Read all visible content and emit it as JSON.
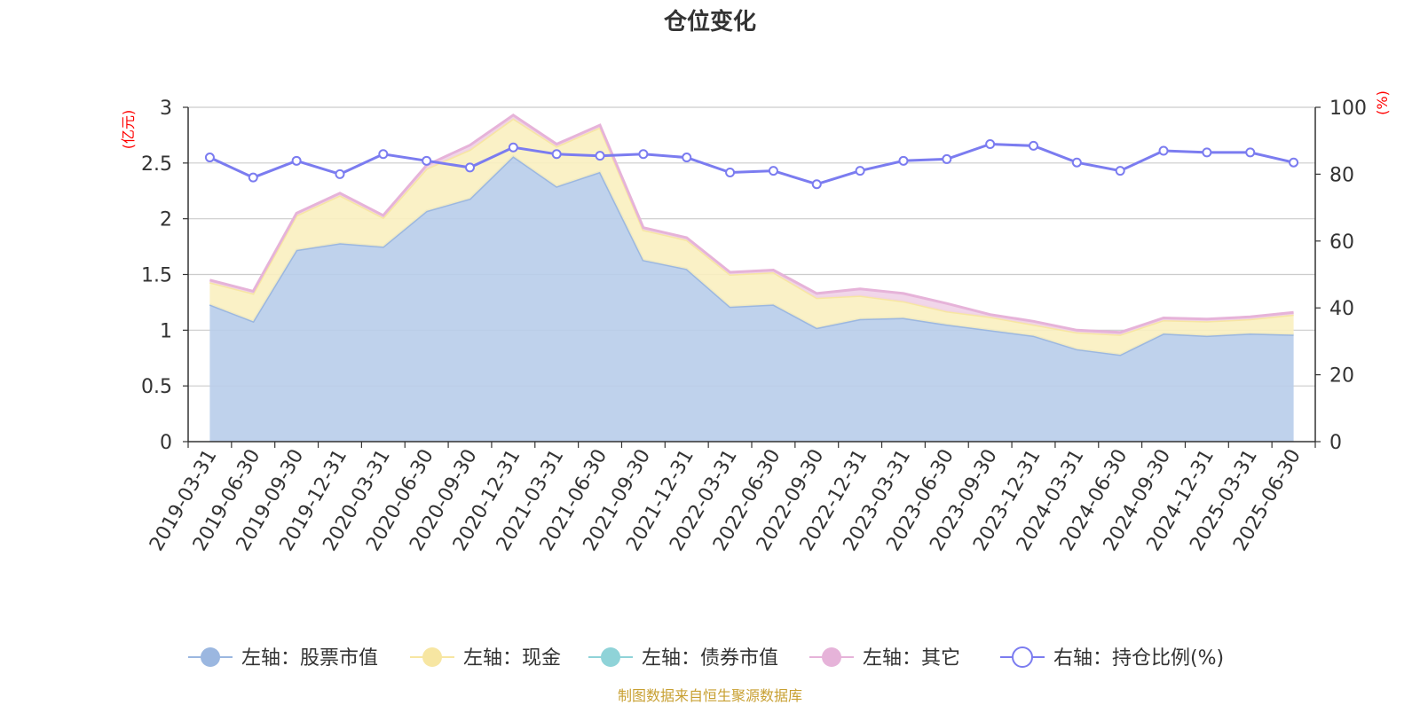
{
  "title": "仓位变化",
  "footer": "制图数据来自恒生聚源数据库",
  "left_axis_unit": "(亿元)",
  "right_axis_unit": "(%)",
  "colors": {
    "stock": "#9bb7e0",
    "stock_fill": "#b8cdea",
    "cash": "#f7e6a2",
    "cash_fill": "#faefc0",
    "bond": "#8fd3d8",
    "other": "#e6b3d9",
    "other_fill": "#efd1e8",
    "ratio": "#7b7cf0",
    "axis_unit": "#ff0000",
    "footer": "#c8a032",
    "text": "#333333",
    "grid": "#cccccc"
  },
  "chart_data": {
    "type": "area",
    "title": "仓位变化",
    "categories": [
      "2019-03-31",
      "2019-06-30",
      "2019-09-30",
      "2019-12-31",
      "2020-03-31",
      "2020-06-30",
      "2020-09-30",
      "2020-12-31",
      "2021-03-31",
      "2021-06-30",
      "2021-09-30",
      "2021-12-31",
      "2022-03-31",
      "2022-06-30",
      "2022-09-30",
      "2022-12-31",
      "2023-03-31",
      "2023-06-30",
      "2023-09-30",
      "2023-12-31",
      "2024-03-31",
      "2024-06-30",
      "2024-09-30",
      "2024-12-31",
      "2025-03-31",
      "2025-06-30"
    ],
    "left_axis": {
      "ylim": [
        0,
        3
      ],
      "ticks": [
        "0",
        "0.5",
        "1",
        "1.5",
        "2",
        "2.5",
        "3"
      ],
      "tick_values": [
        0,
        0.5,
        1,
        1.5,
        2,
        2.5,
        3
      ]
    },
    "right_axis": {
      "ylim": [
        0,
        100
      ],
      "ticks": [
        "0",
        "20",
        "40",
        "60",
        "80",
        "100"
      ],
      "tick_values": [
        0,
        20,
        40,
        60,
        80,
        100
      ]
    },
    "series": [
      {
        "name": "左轴：股票市值",
        "axis": "left",
        "stack": true,
        "values": [
          1.23,
          1.08,
          1.72,
          1.78,
          1.75,
          2.07,
          2.18,
          2.56,
          2.29,
          2.42,
          1.63,
          1.55,
          1.21,
          1.23,
          1.02,
          1.1,
          1.11,
          1.05,
          1.0,
          0.95,
          0.83,
          0.78,
          0.97,
          0.95,
          0.97,
          0.96
        ]
      },
      {
        "name": "左轴：现金",
        "axis": "left",
        "stack": true,
        "values": [
          0.2,
          0.25,
          0.31,
          0.43,
          0.26,
          0.38,
          0.44,
          0.34,
          0.36,
          0.4,
          0.27,
          0.26,
          0.29,
          0.29,
          0.27,
          0.21,
          0.15,
          0.12,
          0.12,
          0.1,
          0.15,
          0.18,
          0.12,
          0.13,
          0.13,
          0.18
        ]
      },
      {
        "name": "左轴：债券市值",
        "axis": "left",
        "stack": true,
        "values": [
          0,
          0,
          0,
          0,
          0,
          0,
          0,
          0,
          0,
          0,
          0,
          0,
          0,
          0,
          0,
          0,
          0,
          0,
          0,
          0,
          0,
          0,
          0,
          0,
          0,
          0
        ]
      },
      {
        "name": "左轴：其它",
        "axis": "left",
        "stack": true,
        "values": [
          0.02,
          0.02,
          0.02,
          0.02,
          0.02,
          0.03,
          0.04,
          0.03,
          0.02,
          0.02,
          0.02,
          0.02,
          0.02,
          0.02,
          0.04,
          0.06,
          0.07,
          0.07,
          0.02,
          0.03,
          0.02,
          0.02,
          0.02,
          0.02,
          0.02,
          0.02
        ]
      },
      {
        "name": "右轴：持仓比例(%)",
        "axis": "right",
        "type": "line",
        "values": [
          85,
          79,
          84,
          80,
          86,
          84,
          82,
          88,
          86,
          85.5,
          86,
          85,
          80.5,
          81,
          77,
          81,
          84,
          84.5,
          89,
          88.5,
          83.5,
          81,
          87,
          86.5,
          86.5,
          83.5
        ]
      }
    ],
    "legend": {
      "placement": "bottom"
    },
    "grid": true
  }
}
